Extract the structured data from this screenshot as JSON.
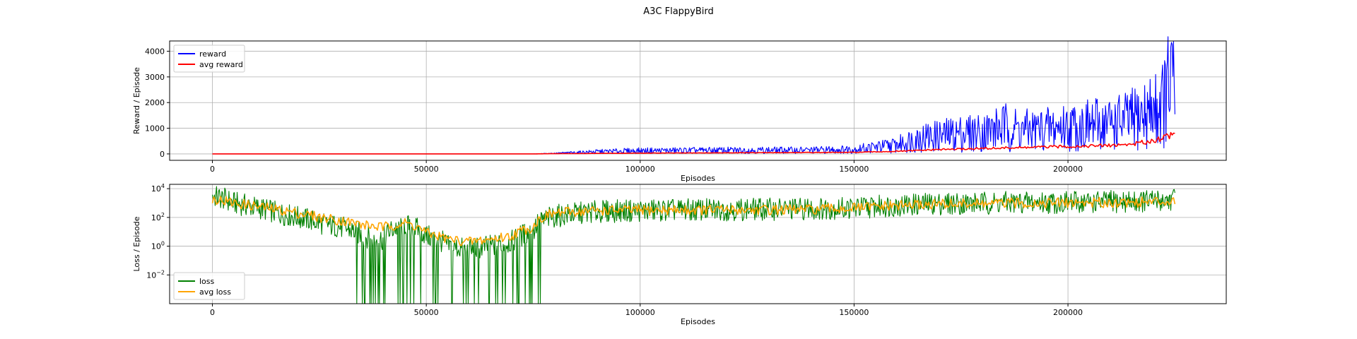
{
  "figure": {
    "title": "A3C FlappyBird"
  },
  "chart_data": [
    {
      "type": "line",
      "xlabel": "Episodes",
      "ylabel": "Reward / Episode",
      "xlim": [
        -10000,
        237000
      ],
      "ylim": [
        -250,
        4400
      ],
      "xticks": [
        0,
        50000,
        100000,
        150000,
        200000
      ],
      "yticks": [
        0,
        1000,
        2000,
        3000,
        4000
      ],
      "yscale": "linear",
      "grid": true,
      "legend_position": "top-left",
      "series": [
        {
          "name": "reward",
          "color": "#0000ff",
          "points": [
            [
              0,
              0
            ],
            [
              75000,
              0
            ],
            [
              78000,
              20
            ],
            [
              85000,
              80
            ],
            [
              90000,
              130
            ],
            [
              100000,
              180
            ],
            [
              120000,
              200
            ],
            [
              140000,
              210
            ],
            [
              150000,
              260
            ],
            [
              160000,
              500
            ],
            [
              165000,
              900
            ],
            [
              170000,
              1000
            ],
            [
              175000,
              1150
            ],
            [
              180000,
              1200
            ],
            [
              185000,
              1500
            ],
            [
              190000,
              1300
            ],
            [
              195000,
              1400
            ],
            [
              200000,
              1500
            ],
            [
              205000,
              1600
            ],
            [
              210000,
              1700
            ],
            [
              215000,
              1900
            ],
            [
              220000,
              2400
            ],
            [
              223000,
              3100
            ],
            [
              224000,
              4200
            ],
            [
              225000,
              3100
            ]
          ]
        },
        {
          "name": "avg reward",
          "color": "#ff0000",
          "points": [
            [
              0,
              0
            ],
            [
              75000,
              0
            ],
            [
              80000,
              10
            ],
            [
              100000,
              30
            ],
            [
              150000,
              60
            ],
            [
              160000,
              100
            ],
            [
              170000,
              170
            ],
            [
              180000,
              210
            ],
            [
              190000,
              250
            ],
            [
              200000,
              290
            ],
            [
              210000,
              330
            ],
            [
              215000,
              380
            ],
            [
              220000,
              520
            ],
            [
              225000,
              800
            ]
          ]
        }
      ]
    },
    {
      "type": "line",
      "xlabel": "Episodes",
      "ylabel": "Loss / Episode",
      "xlim": [
        -10000,
        237000
      ],
      "ylim": [
        0.0001,
        20000
      ],
      "xticks": [
        0,
        50000,
        100000,
        150000,
        200000
      ],
      "yticks": [
        0.01,
        1,
        100,
        10000
      ],
      "yscale": "log",
      "grid": true,
      "legend_position": "bottom-left",
      "series": [
        {
          "name": "loss",
          "color": "#008000",
          "points": [
            [
              0,
              3000
            ],
            [
              5000,
              1000
            ],
            [
              10000,
              500
            ],
            [
              15000,
              200
            ],
            [
              20000,
              100
            ],
            [
              25000,
              40
            ],
            [
              30000,
              20
            ],
            [
              35000,
              5
            ],
            [
              40000,
              3
            ],
            [
              45000,
              30
            ],
            [
              50000,
              5
            ],
            [
              55000,
              1
            ],
            [
              60000,
              0.5
            ],
            [
              65000,
              1
            ],
            [
              70000,
              2
            ],
            [
              75000,
              10
            ],
            [
              80000,
              120
            ],
            [
              90000,
              250
            ],
            [
              100000,
              300
            ],
            [
              120000,
              350
            ],
            [
              140000,
              400
            ],
            [
              150000,
              450
            ],
            [
              160000,
              700
            ],
            [
              170000,
              900
            ],
            [
              180000,
              1000
            ],
            [
              190000,
              1100
            ],
            [
              200000,
              1100
            ],
            [
              210000,
              1200
            ],
            [
              220000,
              1400
            ],
            [
              225000,
              1800
            ]
          ]
        },
        {
          "name": "avg loss",
          "color": "#ffa500",
          "points": [
            [
              0,
              2000
            ],
            [
              5000,
              1000
            ],
            [
              10000,
              600
            ],
            [
              15000,
              350
            ],
            [
              20000,
              200
            ],
            [
              25000,
              100
            ],
            [
              30000,
              60
            ],
            [
              35000,
              30
            ],
            [
              40000,
              20
            ],
            [
              45000,
              40
            ],
            [
              50000,
              8
            ],
            [
              55000,
              3
            ],
            [
              60000,
              2
            ],
            [
              65000,
              3
            ],
            [
              70000,
              5
            ],
            [
              75000,
              20
            ],
            [
              80000,
              200
            ],
            [
              90000,
              300
            ],
            [
              100000,
              320
            ],
            [
              120000,
              330
            ],
            [
              140000,
              350
            ],
            [
              150000,
              450
            ],
            [
              160000,
              650
            ],
            [
              170000,
              850
            ],
            [
              180000,
              900
            ],
            [
              190000,
              1000
            ],
            [
              200000,
              1050
            ],
            [
              210000,
              1100
            ],
            [
              220000,
              1200
            ],
            [
              225000,
              1600
            ]
          ]
        }
      ]
    }
  ]
}
